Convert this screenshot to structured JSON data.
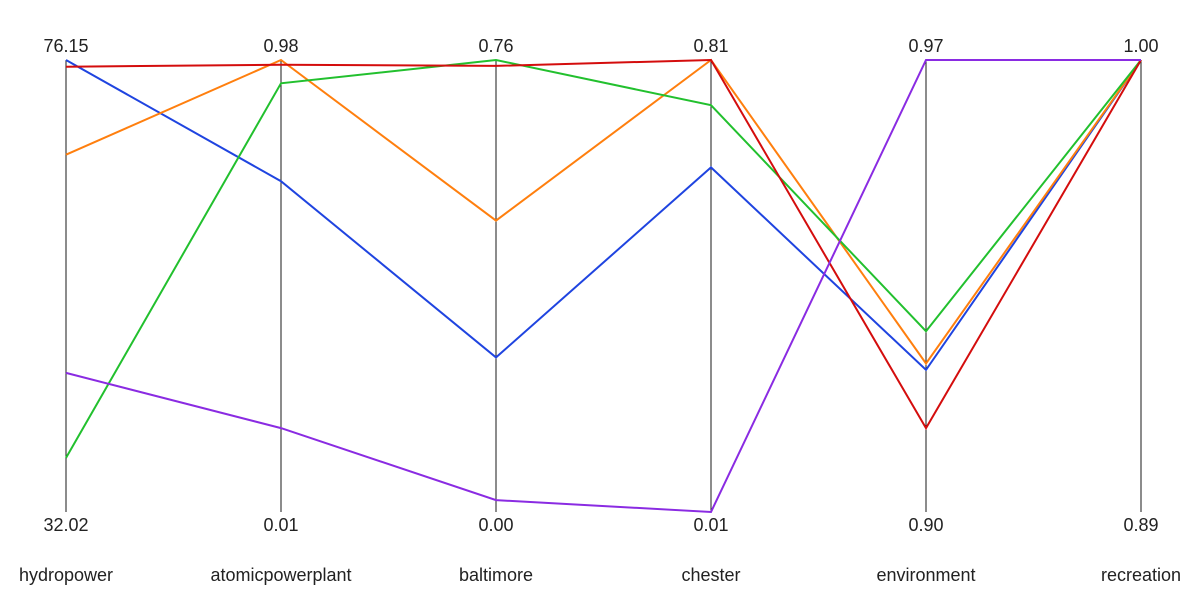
{
  "chart_data": {
    "type": "parallel-coordinates",
    "axes": [
      {
        "name": "hydropower",
        "max_label": "76.15",
        "min_label": "32.02",
        "range": [
          32.02,
          76.15
        ]
      },
      {
        "name": "atomicpowerplant",
        "max_label": "0.98",
        "min_label": "0.01",
        "range": [
          0.01,
          0.98
        ]
      },
      {
        "name": "baltimore",
        "max_label": "0.76",
        "min_label": "0.00",
        "range": [
          0.0,
          0.76
        ]
      },
      {
        "name": "chester",
        "max_label": "0.81",
        "min_label": "0.01",
        "range": [
          0.01,
          0.81
        ]
      },
      {
        "name": "environment",
        "max_label": "0.97",
        "min_label": "0.90",
        "range": [
          0.9,
          0.97
        ]
      },
      {
        "name": "recreation",
        "max_label": "1.00",
        "min_label": "0.89",
        "range": [
          0.89,
          1.0
        ]
      }
    ],
    "series": [
      {
        "color": "#1f44e0",
        "values": [
          76.15,
          0.72,
          0.26,
          0.62,
          0.922,
          1.0
        ]
      },
      {
        "color": "#ff7f0e",
        "values": [
          66.9,
          0.98,
          0.49,
          0.81,
          0.923,
          1.0
        ]
      },
      {
        "color": "#22c02e",
        "values": [
          37.3,
          0.93,
          0.76,
          0.73,
          0.928,
          1.0
        ]
      },
      {
        "color": "#d40d0d",
        "values": [
          75.5,
          0.97,
          0.75,
          0.81,
          0.913,
          1.0
        ]
      },
      {
        "color": "#8a2be2",
        "values": [
          45.6,
          0.19,
          0.02,
          0.01,
          0.97,
          1.0
        ]
      }
    ],
    "grid": false,
    "legend": "none"
  }
}
